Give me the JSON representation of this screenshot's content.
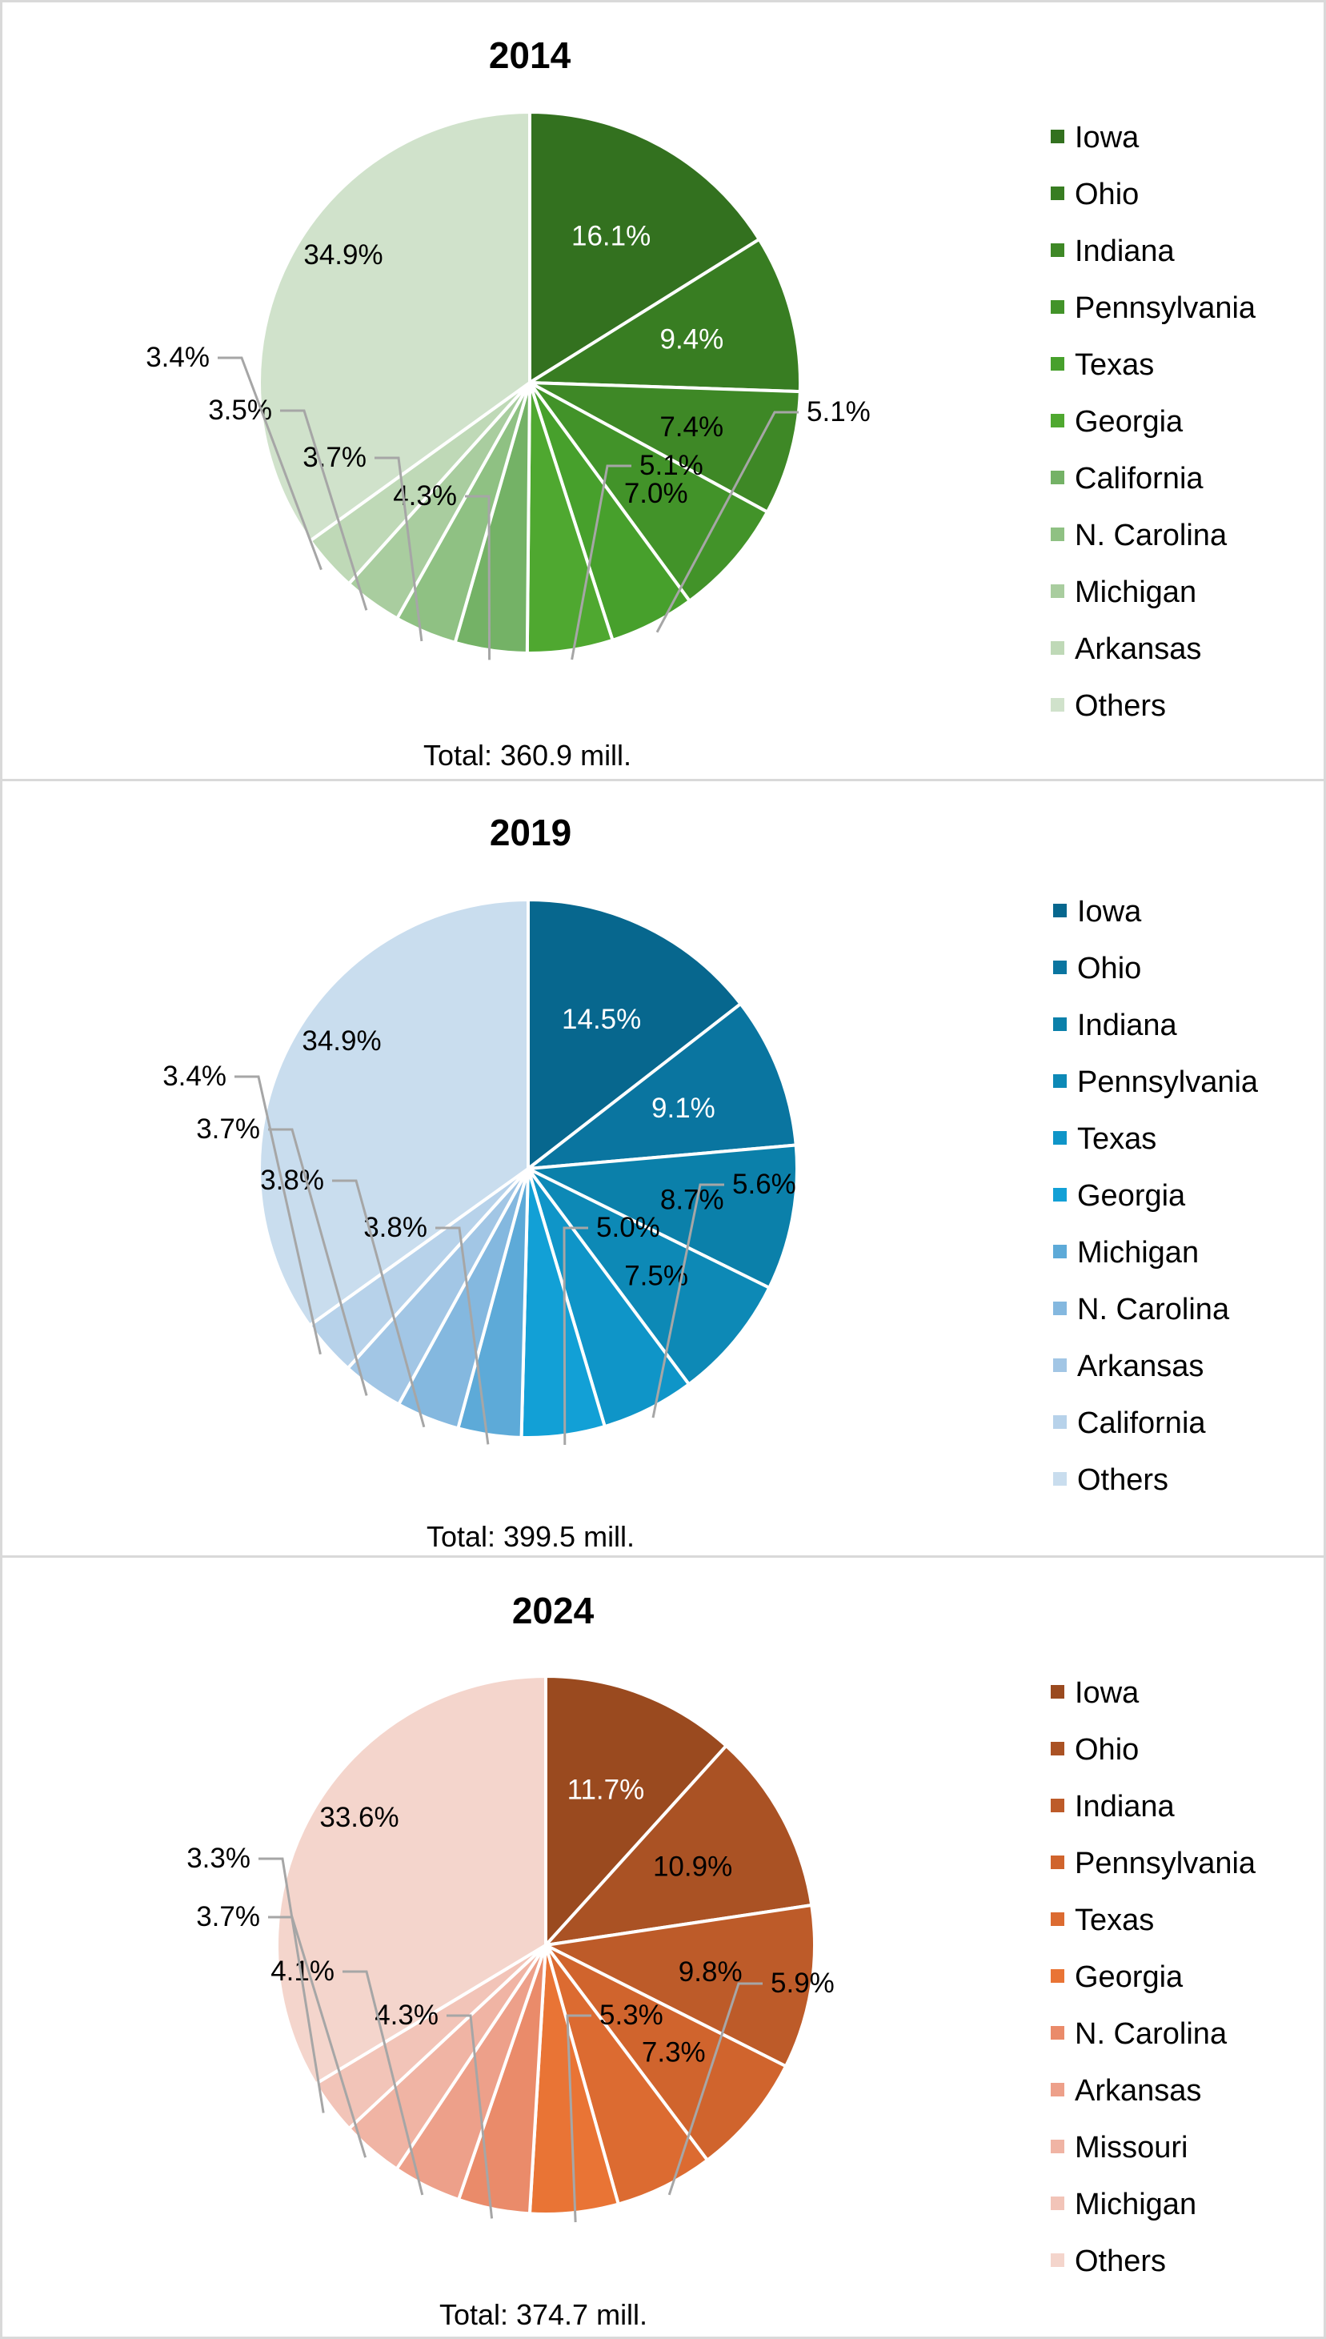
{
  "chart_data": [
    {
      "type": "pie",
      "title": "2014",
      "total_label": "Total: 360.9 mill.",
      "legend_position": "right",
      "categories": [
        "Iowa",
        "Ohio",
        "Indiana",
        "Pennsylvania",
        "Texas",
        "Georgia",
        "California",
        "N. Carolina",
        "Michigan",
        "Arkansas",
        "Others"
      ],
      "values": [
        16.1,
        9.4,
        7.4,
        7.0,
        5.1,
        5.1,
        4.3,
        3.7,
        3.5,
        3.4,
        34.9
      ],
      "labels": [
        "16.1%",
        "9.4%",
        "7.4%",
        "7.0%",
        "5.1%",
        "5.1%",
        "4.3%",
        "3.7%",
        "3.5%",
        "3.4%",
        "34.9%"
      ],
      "colors": [
        "#33711f",
        "#387d22",
        "#3e8826",
        "#429329",
        "#47a02c",
        "#4fa830",
        "#74b266",
        "#8fc183",
        "#a9cd9f",
        "#bfd9b7",
        "#d0e2cb"
      ],
      "label_colors": [
        "#ffffff",
        "#ffffff",
        "#000000",
        "#000000",
        "#000000",
        "#000000",
        "#000000",
        "#000000",
        "#000000",
        "#000000",
        "#000000"
      ]
    },
    {
      "type": "pie",
      "title": "2019",
      "total_label": "Total: 399.5 mill.",
      "legend_position": "right",
      "categories": [
        "Iowa",
        "Ohio",
        "Indiana",
        "Pennsylvania",
        "Texas",
        "Georgia",
        "Michigan",
        "N. Carolina",
        "Arkansas",
        "California",
        "Others"
      ],
      "values": [
        14.5,
        9.1,
        8.7,
        7.5,
        5.6,
        5.0,
        3.8,
        3.8,
        3.7,
        3.4,
        34.9
      ],
      "labels": [
        "14.5%",
        "9.1%",
        "8.7%",
        "7.5%",
        "5.6%",
        "5.0%",
        "3.8%",
        "3.8%",
        "3.7%",
        "3.4%",
        "34.9%"
      ],
      "colors": [
        "#07678e",
        "#0a75a0",
        "#0b80aa",
        "#0d89b6",
        "#0f95c8",
        "#12a0d6",
        "#5daad8",
        "#84b8df",
        "#a2c6e5",
        "#b7d2ea",
        "#c9ddee"
      ],
      "label_colors": [
        "#ffffff",
        "#ffffff",
        "#000000",
        "#000000",
        "#000000",
        "#000000",
        "#000000",
        "#000000",
        "#000000",
        "#000000",
        "#000000"
      ]
    },
    {
      "type": "pie",
      "title": "2024",
      "total_label": "Total: 374.7 mill.",
      "legend_position": "right",
      "categories": [
        "Iowa",
        "Ohio",
        "Indiana",
        "Pennsylvania",
        "Texas",
        "Georgia",
        "N. Carolina",
        "Arkansas",
        "Missouri",
        "Michigan",
        "Others"
      ],
      "values": [
        11.7,
        10.9,
        9.8,
        7.3,
        5.9,
        5.3,
        4.3,
        4.1,
        3.7,
        3.3,
        33.6
      ],
      "labels": [
        "11.7%",
        "10.9%",
        "9.8%",
        "7.3%",
        "5.9%",
        "5.3%",
        "4.3%",
        "4.1%",
        "3.7%",
        "3.3%",
        "33.6%"
      ],
      "colors": [
        "#9a4a1f",
        "#aa5224",
        "#bd5b29",
        "#d0642d",
        "#dc6b31",
        "#e97435",
        "#ea8b6a",
        "#eda08a",
        "#f0b4a4",
        "#f2c4b8",
        "#f4d5cc"
      ],
      "label_colors": [
        "#ffffff",
        "#000000",
        "#000000",
        "#000000",
        "#000000",
        "#000000",
        "#000000",
        "#000000",
        "#000000",
        "#000000",
        "#000000"
      ]
    }
  ]
}
